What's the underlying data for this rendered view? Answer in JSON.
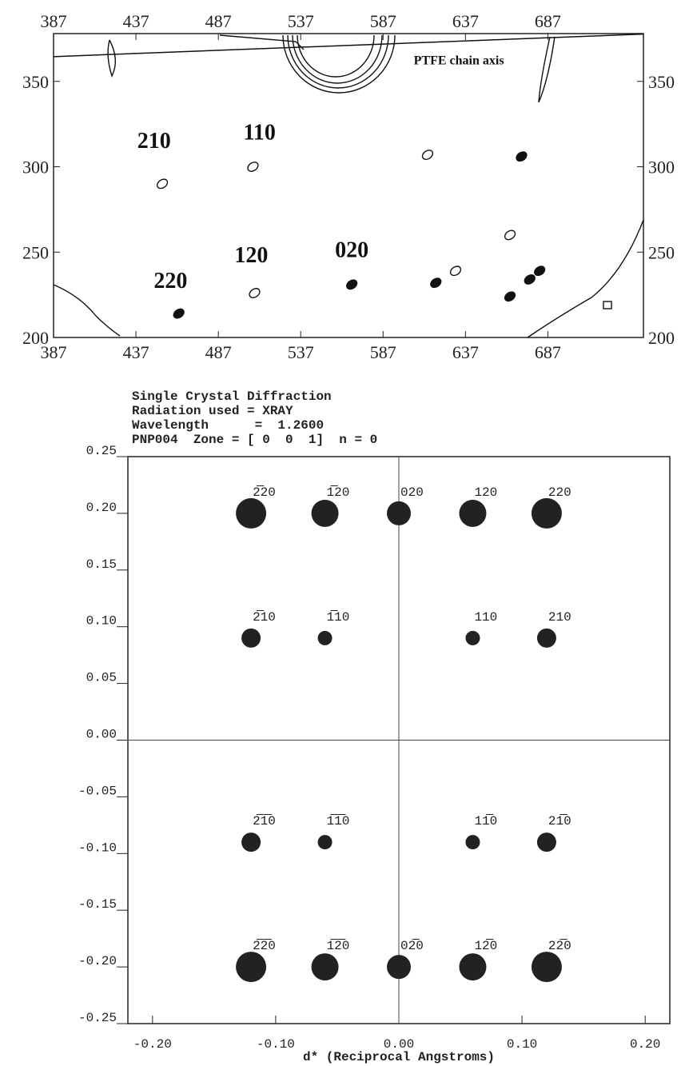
{
  "chart_data": [
    {
      "type": "contour",
      "xlim": [
        387,
        745
      ],
      "xticks": [
        387,
        437,
        487,
        537,
        587,
        637,
        687
      ],
      "ylim": [
        200,
        378
      ],
      "yticks": [
        200,
        250,
        300,
        350
      ],
      "color": "#111111",
      "annotations": [
        {
          "text": "210",
          "x": 448,
          "y": 311
        },
        {
          "text": "110",
          "x": 512,
          "y": 316
        },
        {
          "text": "120",
          "x": 507,
          "y": 244
        },
        {
          "text": "020",
          "x": 568,
          "y": 247
        },
        {
          "text": "220",
          "x": 458,
          "y": 229
        },
        {
          "text": "PTFE chain axis",
          "x": 633,
          "y": 360
        }
      ],
      "spots": {
        "x": [
          463,
          509,
          568,
          619,
          631,
          664,
          676,
          682,
          671,
          664,
          614,
          453,
          508
        ],
        "y": [
          214,
          226,
          231,
          232,
          239,
          224,
          234,
          239,
          306,
          260,
          307,
          290,
          300
        ],
        "filled": [
          true,
          false,
          true,
          true,
          false,
          true,
          true,
          true,
          true,
          false,
          false,
          false,
          false
        ]
      },
      "line": {
        "x": [
          387,
          745
        ],
        "y": [
          364.5,
          377.7
        ]
      }
    },
    {
      "type": "scatter",
      "title_lines": [
        "Single Crystal Diffraction",
        "Radiation used = XRAY",
        "Wavelength      =  1.2600",
        "PNP004  Zone = [ 0  0  1]  n = 0"
      ],
      "xlabel": "d* (Reciprocal Angstroms)",
      "xlim": [
        -0.22,
        0.22
      ],
      "xticks": [
        {
          "value": -0.2,
          "label": "-0.20"
        },
        {
          "value": -0.1,
          "label": "-0.10"
        },
        {
          "value": 0,
          "label": "0.00"
        },
        {
          "value": 0.1,
          "label": "0.10"
        },
        {
          "value": 0.2,
          "label": "0.20"
        }
      ],
      "ylim": [
        -0.25,
        0.25
      ],
      "yticks": [
        0.25,
        {
          "value": 0.2,
          "label": "0.20"
        },
        0.15,
        {
          "value": 0.1,
          "label": "0.10"
        },
        0.05,
        {
          "value": 0,
          "label": "0.00"
        },
        -0.05,
        {
          "value": -0.1,
          "label": "-0.10"
        },
        -0.15,
        {
          "value": -0.2,
          "label": "-0.20"
        },
        -0.25
      ],
      "zero_lines": true,
      "color": "#222222",
      "x": [
        -0.12,
        -0.06,
        0,
        0.06,
        0.12,
        -0.12,
        -0.06,
        0.06,
        0.12,
        -0.12,
        -0.06,
        0.06,
        0.12,
        -0.12,
        -0.06,
        0,
        0.06,
        0.12
      ],
      "y": [
        0.2,
        0.2,
        0.2,
        0.2,
        0.2,
        0.09,
        0.09,
        0.09,
        0.09,
        -0.09,
        -0.09,
        -0.09,
        -0.09,
        -0.2,
        -0.2,
        -0.2,
        -0.2,
        -0.2
      ],
      "sizes": [
        19,
        17,
        15,
        17,
        19,
        12,
        9,
        9,
        12,
        12,
        9,
        9,
        12,
        19,
        17,
        15,
        17,
        19
      ],
      "labels": [
        "2̅20",
        "1̅20",
        "020",
        "120",
        "220",
        "2̅10",
        "1̅10",
        "110",
        "210",
        "2̅1̅0",
        "1̅1̅0",
        "11̅0",
        "21̅0",
        "2̅2̅0",
        "1̅2̅0",
        "02̅0",
        "12̅0",
        "22̅0"
      ]
    }
  ]
}
